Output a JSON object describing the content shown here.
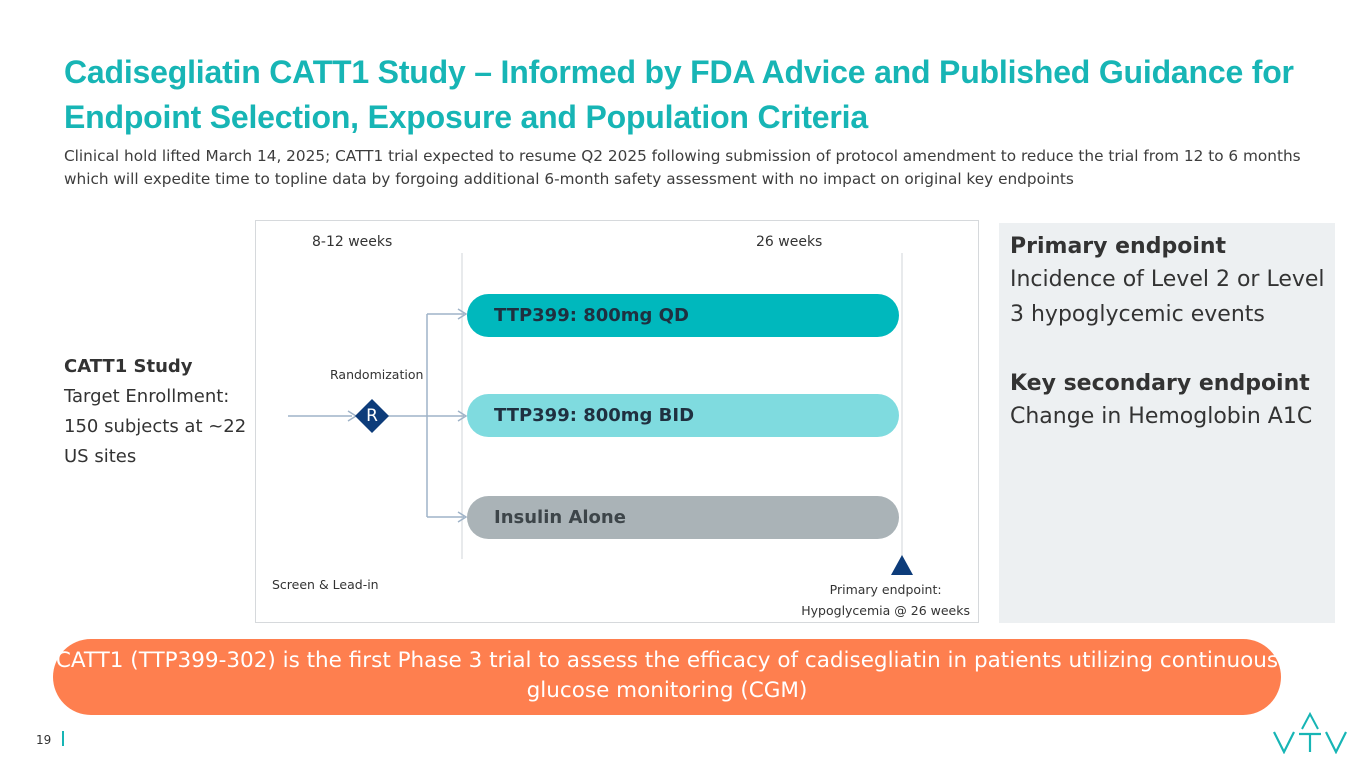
{
  "header": {
    "title": "Cadisegliatin CATT1 Study – Informed by FDA Advice and Published Guidance for Endpoint Selection, Exposure and Population Criteria",
    "subtitle": "Clinical hold lifted March 14, 2025; CATT1 trial expected to resume Q2 2025 following submission of protocol amendment to reduce the trial from 12 to 6 months which will expedite time to topline data by forgoing additional 6-month safety assessment with no impact on original key endpoints"
  },
  "study": {
    "title": "CATT1 Study",
    "text": "Target Enrollment: 150 subjects at ~22 US sites"
  },
  "diagram": {
    "leadin_duration": "8-12 weeks",
    "treatment_duration": "26 weeks",
    "randomization_label": "Randomization",
    "randomization_symbol": "R",
    "screen_label": "Screen & Lead-in",
    "arms": [
      {
        "label": "TTP399: 800mg QD",
        "color": "#00b8bd"
      },
      {
        "label": "TTP399: 800mg BID",
        "color": "#7fdbdf"
      },
      {
        "label": "Insulin Alone",
        "color": "#aab3b7"
      }
    ],
    "primary_endpoint_line1": "Primary endpoint:",
    "primary_endpoint_line2": "Hypoglycemia @ 26 weeks"
  },
  "endpoints": {
    "primary_title": "Primary endpoint",
    "primary_text": "Incidence of Level 2 or Level 3 hypoglycemic events",
    "secondary_title": "Key secondary endpoint",
    "secondary_text": "Change in Hemoglobin A1C"
  },
  "banner": {
    "text": "CATT1 (TTP399-302) is the first Phase 3 trial to assess the efficacy of cadisegliatin in patients utilizing continuous glucose monitoring (CGM)"
  },
  "footer": {
    "page_number": "19"
  },
  "colors": {
    "accent": "#17b5b5",
    "banner": "#fe7f4f",
    "navy": "#0d3c7a"
  }
}
